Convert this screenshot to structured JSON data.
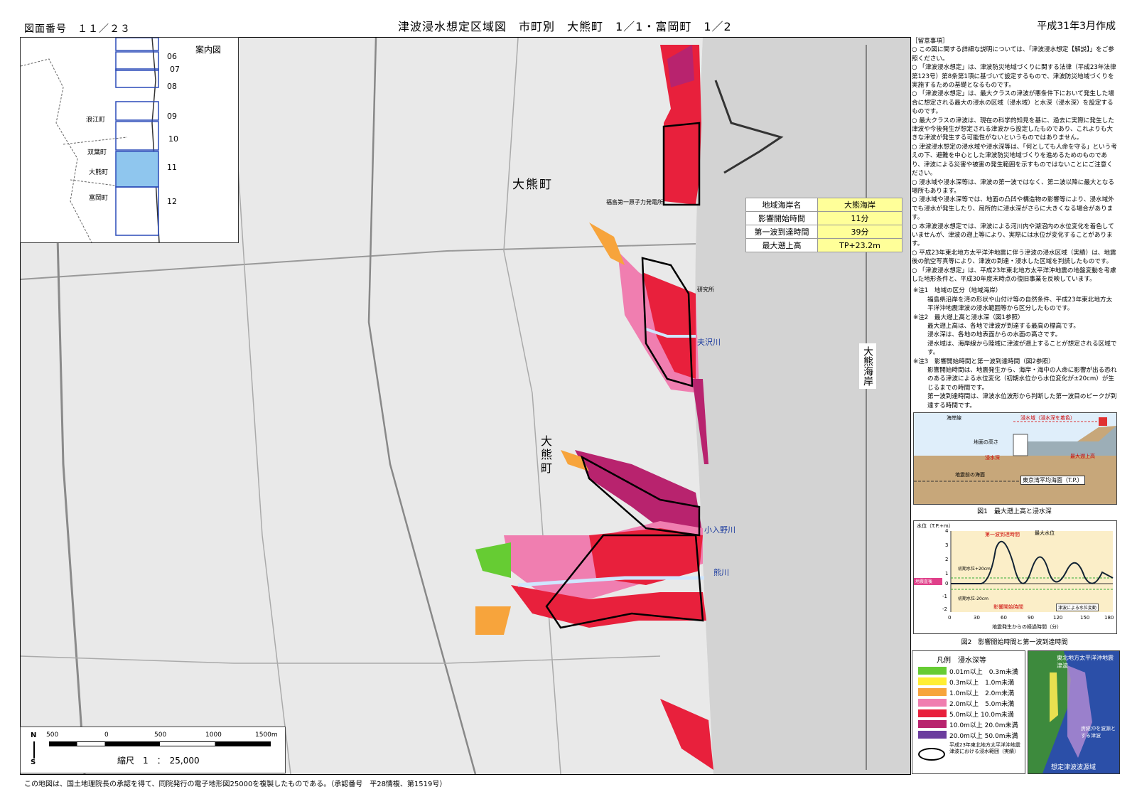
{
  "header": {
    "figure_number": "図面番号　１１／２３",
    "title": "津波浸水想定区域図　市町別　大熊町　1／1・富岡町　1／2",
    "created": "平成31年3月作成"
  },
  "inset": {
    "title": "案内図",
    "sheet_numbers": [
      "06",
      "07",
      "08",
      "09",
      "10",
      "11",
      "12"
    ],
    "towns": [
      "浪江町",
      "双葉町",
      "大熊町",
      "富岡町"
    ]
  },
  "map_labels": {
    "town_upper": "大熊町",
    "town_middle": "大\n熊\n町",
    "coast": "大熊海岸",
    "river_1": "夫沢川",
    "river_2": "小入野川",
    "river_3": "熊川",
    "research": "研究所",
    "plant": "福島第一原子力発電所"
  },
  "info_table": [
    {
      "key": "地域海岸名",
      "value": "大熊海岸"
    },
    {
      "key": "影響開始時間",
      "value": "11分"
    },
    {
      "key": "第一波到達時間",
      "value": "39分"
    },
    {
      "key": "最大遡上高",
      "value": "TP+23.2m"
    }
  ],
  "scale": {
    "ticks": [
      "500",
      "0",
      "500",
      "1000",
      "1500m"
    ],
    "label": "縮尺　1　：　25,000",
    "north": "N",
    "south": "S"
  },
  "credit": "この地図は、国土地理院長の承認を得て、同院発行の電子地形図25000を複製したものである。（承認番号　平28情複、第1519号）",
  "notes": {
    "heading": "［留意事項］",
    "items": [
      "○ この図に関する詳細な説明については、「津波浸水想定【解説】」をご参照ください。",
      "○ 「津波浸水想定」は、津波防災地域づくりに関する法律（平成23年法律第123号）第8条第1項に基づいて設定するもので、津波防災地域づくりを実施するための基礎となるものです。",
      "○ 「津波浸水想定」は、最大クラスの津波が悪条件下において発生した場合に想定される最大の浸水の区域（浸水域）と水深（浸水深）を設定するものです。",
      "○ 最大クラスの津波は、現在の科学的知見を基に、過去に実際に発生した津波や今後発生が想定される津波から設定したものであり、これよりも大きな津波が発生する可能性がないというものではありません。",
      "○ 津波浸水想定の浸水域や浸水深等は、「何としても人命を守る」という考えの下、避難を中心とした津波防災地域づくりを進めるためのものであり、津波による災害や被害の発生範囲を示すものではないことにご注意ください。",
      "○ 浸水域や浸水深等は、津波の第一波ではなく、第二波以降に最大となる場所もあります。",
      "○ 浸水域や浸水深等では、地面の凸凹や構造物の影響等により、浸水域外でも浸水が発生したり、局所的に浸水深がさらに大きくなる場合があります。",
      "○ 本津波浸水想定では、津波による河川内や湖沼内の水位変化を着色していませんが、津波の遡上等により、実際には水位が変化することがあります。",
      "○ 平成23年東北地方太平洋沖地震に伴う津波の浸水区域（実績）は、地震後の航空写真等により、津波の到達・浸水した区域を判読したものです。",
      "○ 「津波浸水想定」は、平成23年東北地方太平洋沖地震の地盤変動を考慮した地形条件と、平成30年度末時点の復旧事業を反映しています。"
    ],
    "footnotes": [
      "※注1　地域の区分（地域海岸）",
      "福島県沿岸を湾の形状や山付け等の自然条件、平成23年東北地方太平洋沖地震津波の浸水範囲等から区分したものです。",
      "※注2　最大遡上高と浸水深（図1参照）",
      "最大遡上高は、各地で津波が到達する最高の標高です。",
      "浸水深は、各地の地表面からの水面の高さです。",
      "浸水域は、海岸線から陸域に津波が遡上することが想定される区域です。",
      "※注3　影響開始時間と第一波到達時間（図2参照）",
      "影響開始時間は、地震発生から、海岸・海中の人命に影響が出る恐れのある津波による水位変化（初期水位から水位変化が±20cm）が生じるまでの時間です。",
      "第一波到達時間は、津波水位波形から判断した第一波目のピークが到達する時間です。"
    ]
  },
  "fig1": {
    "caption": "図1　最大遡上高と浸水深",
    "coastline": "海岸線",
    "inundation_area": "浸水域（浸水深を着色）",
    "building": "地面の高さ",
    "depth": "浸水深",
    "max_runup": "最大遡上高",
    "datum": "東京湾平均海面（T.P.）",
    "sea_level": "地震前の海面"
  },
  "fig2": {
    "caption": "図2　影響開始時間と第一波到達時間",
    "ylabel": "水位（T.P.+m）",
    "xlabel": "地震発生からの経過時間（分）",
    "x_ticks": [
      "0",
      "30",
      "60",
      "90",
      "120",
      "150",
      "180"
    ],
    "y_ticks": [
      "4",
      "3",
      "2",
      "1",
      "0",
      "-1",
      "-2"
    ],
    "first_wave": "第一波到達時間",
    "max_level": "最大水位",
    "impact_start": "影響開始時間",
    "plus20": "初期水位+20cm",
    "minus20": "初期水位-20cm",
    "initial": "地震直後",
    "tide_note": "津波による水位変動"
  },
  "legend": {
    "title": "凡例　浸水深等",
    "items": [
      {
        "label": "0.01m以上　0.3m未満",
        "color": "#66cc33"
      },
      {
        "label": "0.3m以上　1.0m未満",
        "color": "#ffee33"
      },
      {
        "label": "1.0m以上　2.0m未満",
        "color": "#f7a43c"
      },
      {
        "label": "2.0m以上　5.0m未満",
        "color": "#f07eb0"
      },
      {
        "label": "5.0m以上 10.0m未満",
        "color": "#e8203c"
      },
      {
        "label": "10.0m以上 20.0m未満",
        "color": "#b8236e"
      },
      {
        "label": "20.0m以上 50.0m未満",
        "color": "#6b3c9e"
      }
    ],
    "record_label": "平成23年東北地方太平洋沖地震津波における浸水範囲（実績）"
  },
  "source_map": {
    "label_top": "東北地方太平洋沖地震津波",
    "label_mid": "房総沖を波源とする津波",
    "label_bottom": "想定津波波源域"
  }
}
